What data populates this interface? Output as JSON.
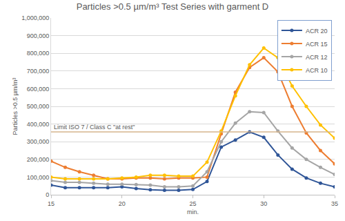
{
  "chart_data": {
    "type": "line",
    "title": "Particles >0.5 µm/m³ Test Series with garment D",
    "y_label": "Particles >0.5 µm/m³",
    "x_label": "min.",
    "x": [
      15,
      16,
      17,
      18,
      19,
      20,
      21,
      22,
      23,
      24,
      25,
      26,
      27,
      28,
      29,
      30,
      31,
      32,
      33,
      34,
      35
    ],
    "series": [
      {
        "name": "ACR 20",
        "color": "#2f5597",
        "values": [
          55000,
          40000,
          40000,
          40000,
          40000,
          45000,
          35000,
          28000,
          25000,
          25000,
          30000,
          75000,
          270000,
          310000,
          355000,
          325000,
          225000,
          145000,
          95000,
          65000,
          45000
        ]
      },
      {
        "name": "ACR 15",
        "color": "#ed7d31",
        "values": [
          190000,
          155000,
          130000,
          110000,
          90000,
          90000,
          95000,
          95000,
          90000,
          95000,
          95000,
          100000,
          345000,
          580000,
          720000,
          775000,
          695000,
          500000,
          350000,
          250000,
          175000
        ]
      },
      {
        "name": "ACR 12",
        "color": "#a5a5a5",
        "values": [
          80000,
          70000,
          70000,
          65000,
          60000,
          60000,
          58000,
          55000,
          45000,
          45000,
          50000,
          130000,
          300000,
          405000,
          470000,
          465000,
          360000,
          265000,
          200000,
          155000,
          115000
        ]
      },
      {
        "name": "ACR 10",
        "color": "#ffc000",
        "values": [
          100000,
          90000,
          90000,
          90000,
          90000,
          95000,
          100000,
          110000,
          110000,
          105000,
          105000,
          185000,
          360000,
          560000,
          735000,
          830000,
          775000,
          615000,
          500000,
          395000,
          320000
        ]
      }
    ],
    "annotations": [
      {
        "text": "Limit ISO 7 / Class C \"at rest\"",
        "y": 355000,
        "color": "#d6b58c"
      }
    ],
    "xlim": [
      15,
      35
    ],
    "xticks": [
      15,
      20,
      25,
      30,
      35
    ],
    "ylim": [
      0,
      1000000
    ],
    "yticks": [
      0,
      {
        "value": 100000,
        "label": "100,000"
      },
      {
        "value": 200000,
        "label": "200,000"
      },
      {
        "value": 300000,
        "label": "300,000"
      },
      {
        "value": 400000,
        "label": "400,000"
      },
      {
        "value": 500000,
        "label": "500,000"
      },
      {
        "value": 600000,
        "label": "600,000"
      },
      {
        "value": 700000,
        "label": "700,000"
      },
      {
        "value": 800000,
        "label": "800,000"
      },
      {
        "value": 900000,
        "label": "900,000"
      },
      {
        "value": 1000000,
        "label": "1,000,000"
      }
    ],
    "grid": true,
    "legend": "upper right",
    "marker": "circle"
  }
}
